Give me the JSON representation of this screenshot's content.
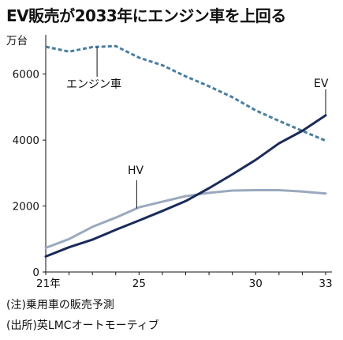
{
  "title": "EV販売が2033年にエンジン車を上回る",
  "notes": [
    "(注)乗用車の販売予測",
    "(出所)英LMCオートモーティブ"
  ],
  "chart_data": {
    "type": "line",
    "ylabel": "万台",
    "ylim": [
      0,
      7000
    ],
    "yticks": [
      "0",
      "2000",
      "4000",
      "6000"
    ],
    "xlim": [
      2021,
      2033
    ],
    "xticks": [
      {
        "x": 2021,
        "label": "21年"
      },
      {
        "x": 2025,
        "label": "25"
      },
      {
        "x": 2030,
        "label": "30"
      },
      {
        "x": 2033,
        "label": "33"
      }
    ],
    "grid": false,
    "series": [
      {
        "name": "エンジン車",
        "style": "dashed",
        "color": "#4a7ea0",
        "x": [
          2021,
          2022,
          2023,
          2024,
          2025,
          2026,
          2027,
          2028,
          2029,
          2030,
          2031,
          2032,
          2033
        ],
        "values": [
          6830,
          6680,
          6820,
          6850,
          6500,
          6270,
          5930,
          5630,
          5300,
          4900,
          4580,
          4280,
          3980
        ]
      },
      {
        "name": "HV",
        "style": "solid",
        "color": "#9aa9bd",
        "x": [
          2021,
          2022,
          2023,
          2024,
          2025,
          2026,
          2027,
          2028,
          2029,
          2030,
          2031,
          2032,
          2033
        ],
        "values": [
          730,
          1000,
          1370,
          1650,
          1960,
          2130,
          2300,
          2400,
          2470,
          2480,
          2480,
          2440,
          2380
        ]
      },
      {
        "name": "EV",
        "style": "solid",
        "color": "#1a2a5a",
        "x": [
          2021,
          2022,
          2023,
          2024,
          2025,
          2026,
          2027,
          2028,
          2029,
          2030,
          2031,
          2032,
          2033
        ],
        "values": [
          470,
          750,
          980,
          1280,
          1560,
          1850,
          2150,
          2540,
          2960,
          3400,
          3900,
          4280,
          4750
        ]
      }
    ]
  }
}
